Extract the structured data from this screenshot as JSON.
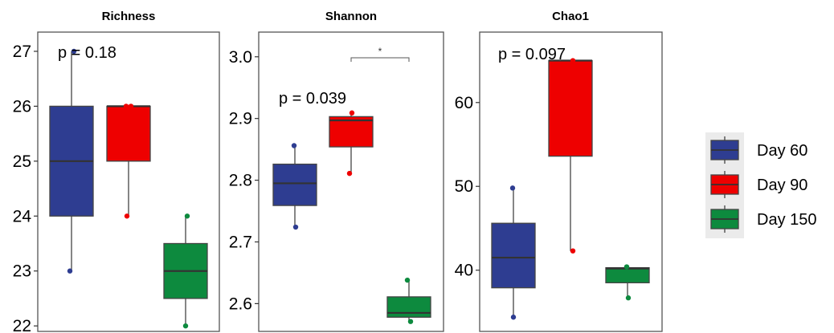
{
  "chart_data": [
    {
      "type": "box",
      "title": "Richness",
      "annotation": "p = 0.18",
      "ylim": [
        21.9,
        27.35
      ],
      "yticks": [
        22,
        23,
        24,
        25,
        26,
        27
      ],
      "tick_labels": [
        "22",
        "23",
        "24",
        "25",
        "26",
        "27"
      ],
      "series": [
        {
          "name": "Day 60",
          "q1": 24,
          "median": 25,
          "q3": 26,
          "whisker_low": 23,
          "whisker_high": 27,
          "points": [
            27,
            23
          ]
        },
        {
          "name": "Day 90",
          "q1": 25,
          "median": 26,
          "q3": 26,
          "whisker_low": 24,
          "whisker_high": 26,
          "points": [
            26,
            26,
            24
          ]
        },
        {
          "name": "Day 150",
          "q1": 22.5,
          "median": 23,
          "q3": 23.5,
          "whisker_low": 22,
          "whisker_high": 24,
          "points": [
            24,
            22
          ]
        }
      ]
    },
    {
      "type": "box",
      "title": "Shannon",
      "annotation": "p = 0.039",
      "significance": {
        "label": "*",
        "between": [
          "Day 90",
          "Day 150"
        ]
      },
      "ylim": [
        2.555,
        3.04
      ],
      "yticks": [
        2.6,
        2.7,
        2.8,
        2.9,
        3.0
      ],
      "tick_labels": [
        "2.6",
        "2.7",
        "2.8",
        "2.9",
        "3.0"
      ],
      "series": [
        {
          "name": "Day 60",
          "q1": 2.759,
          "median": 2.795,
          "q3": 2.826,
          "whisker_low": 2.724,
          "whisker_high": 2.856,
          "points": [
            2.856,
            2.724
          ]
        },
        {
          "name": "Day 90",
          "q1": 2.854,
          "median": 2.897,
          "q3": 2.903,
          "whisker_low": 2.811,
          "whisker_high": 2.909,
          "points": [
            2.909,
            2.811
          ]
        },
        {
          "name": "Day 150",
          "q1": 2.578,
          "median": 2.585,
          "q3": 2.611,
          "whisker_low": 2.571,
          "whisker_high": 2.638,
          "points": [
            2.638,
            2.571
          ]
        }
      ]
    },
    {
      "type": "box",
      "title": "Chao1",
      "annotation": "p = 0.097",
      "ylim": [
        32.7,
        68.4
      ],
      "yticks": [
        40,
        50,
        60
      ],
      "tick_labels": [
        "40",
        "50",
        "60"
      ],
      "series": [
        {
          "name": "Day 60",
          "q1": 37.9,
          "median": 41.5,
          "q3": 45.6,
          "whisker_low": 34.4,
          "whisker_high": 49.8,
          "points": [
            49.8,
            34.4
          ]
        },
        {
          "name": "Day 90",
          "q1": 53.6,
          "median": 65.0,
          "q3": 65.0,
          "whisker_low": 42.3,
          "whisker_high": 65.0,
          "points": [
            65.0,
            42.3
          ]
        },
        {
          "name": "Day 150",
          "q1": 38.5,
          "median": 40.2,
          "q3": 40.3,
          "whisker_low": 36.7,
          "whisker_high": 40.4,
          "points": [
            40.4,
            36.7
          ]
        }
      ]
    }
  ],
  "legend": {
    "position": "right",
    "items": [
      {
        "label": "Day 60",
        "color": "#2e3d91"
      },
      {
        "label": "Day 90",
        "color": "#ee0000"
      },
      {
        "label": "Day 150",
        "color": "#0d8a3e"
      }
    ]
  },
  "colors": {
    "Day 60": "#2e3d91",
    "Day 90": "#ee0000",
    "Day 150": "#0d8a3e"
  }
}
